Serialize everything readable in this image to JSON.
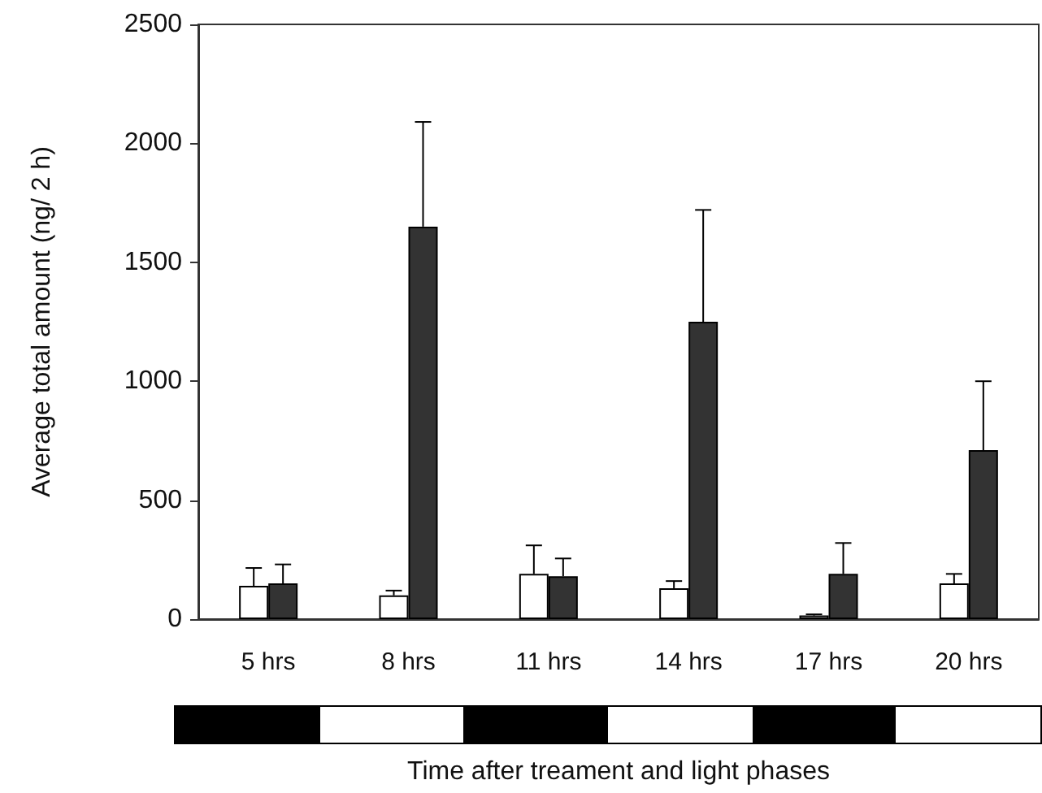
{
  "chart_data": {
    "type": "bar",
    "xlabel": "Time after treament and light phases",
    "ylabel": "Average total amount (ng/ 2 h)",
    "categories": [
      "5 hrs",
      "8 hrs",
      "11 hrs",
      "14 hrs",
      "17 hrs",
      "20 hrs"
    ],
    "series": [
      {
        "color": "#ffffff",
        "values": [
          140,
          100,
          190,
          130,
          15,
          150
        ],
        "errors": [
          75,
          20,
          120,
          30,
          5,
          40
        ]
      },
      {
        "color": "#333333",
        "values": [
          150,
          1650,
          180,
          1250,
          190,
          710
        ],
        "errors": [
          80,
          440,
          75,
          470,
          130,
          290
        ]
      }
    ],
    "ylim": [
      0,
      2500
    ],
    "yticks": [
      0,
      500,
      1000,
      1500,
      2000,
      2500
    ],
    "grid": false
  }
}
